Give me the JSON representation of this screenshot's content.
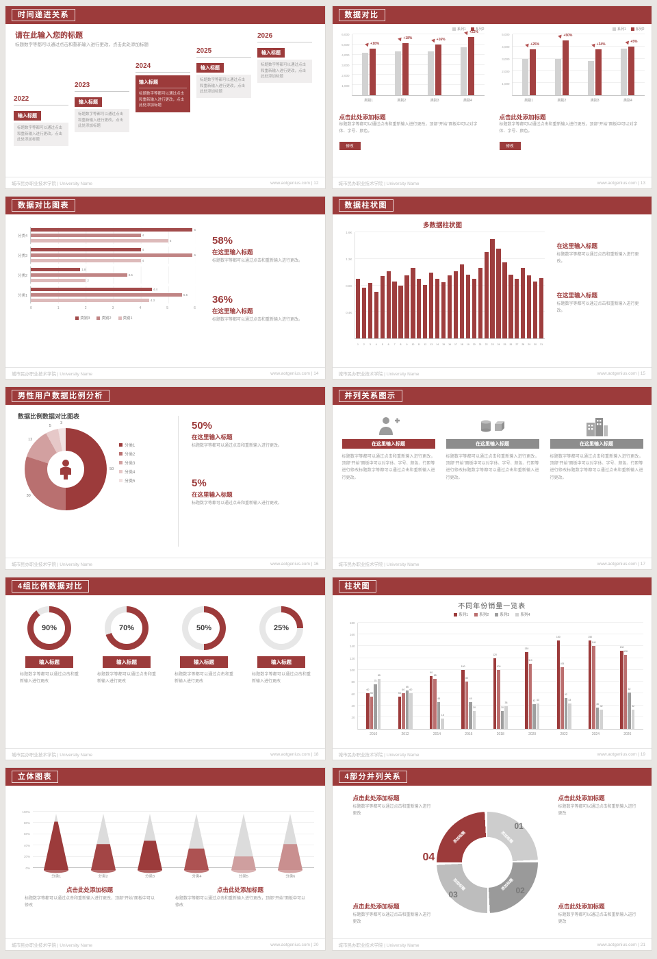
{
  "theme": {
    "accent_red": "#9c3b3b",
    "bar_gray": "#d2d2d2",
    "bar_red": "#a34141",
    "text_gray": "#9a9a9a",
    "background": "#e8e6e3"
  },
  "footer": {
    "org": "城市民办职业技术学院 | University Name",
    "url": "www.aotgenius.com"
  },
  "slides": {
    "s12": {
      "page": "12",
      "header": "时间递进关系",
      "title": "请在此输入您的标题",
      "subtitle": "标题数字等都可以通过点击和重新输入进行更改，点击此处添加标题",
      "item_label": "输入标题",
      "item_text": "标题数字等都可以通过点击和重新输入进行更改，点击此处添加标题",
      "years": [
        "2022",
        "2023",
        "2024",
        "2025",
        "2026"
      ]
    },
    "s13": {
      "page": "13",
      "header": "数据对比",
      "legend": [
        "系列1",
        "系列2"
      ],
      "block_title": "点击此处添加标题",
      "block_text": "标题数字等都可以通过点击和重新输入进行更改，顶部“开始”面板中可以对字体、字号、颜色。",
      "button": "修改",
      "charts": [
        {
          "ymax": 6000,
          "yticks": [
            "6,000",
            "5,000",
            "4,000",
            "3,000",
            "2,000",
            "1,000"
          ],
          "categories": [
            "类别1",
            "类别2",
            "类别3",
            "类别4"
          ],
          "series1": [
            4200,
            4300,
            4300,
            4700
          ],
          "series2": [
            4600,
            5100,
            5000,
            5700
          ],
          "deltas": [
            "+10%",
            "+18%",
            "+16%",
            "+22%"
          ]
        },
        {
          "ymax": 5000,
          "yticks": [
            "5,000",
            "4,000",
            "3,000",
            "2,000",
            "1,000"
          ],
          "categories": [
            "类别1",
            "类别2",
            "类别3",
            "类别4"
          ],
          "series1": [
            3000,
            3000,
            2800,
            3800
          ],
          "series2": [
            3750,
            4500,
            3750,
            4000
          ],
          "deltas": [
            "+25%",
            "+50%",
            "+34%",
            "+5%"
          ]
        }
      ]
    },
    "s14": {
      "page": "14",
      "header": "数据对比图表",
      "chart": {
        "categories": [
          "分类4",
          "分类3",
          "分类2",
          "分类1"
        ],
        "values": [
          [
            6,
            4,
            5
          ],
          [
            4,
            6,
            4
          ],
          [
            1.8,
            3.5,
            2
          ],
          [
            4.4,
            5.5,
            4.3
          ]
        ],
        "colors": [
          "#a24b4b",
          "#c08484",
          "#ddbaba"
        ],
        "legend": [
          "类别3",
          "类别2",
          "类别1"
        ],
        "xticks": [
          "0",
          "1",
          "2",
          "3",
          "4",
          "5",
          "6"
        ],
        "xmax": 6
      },
      "stats": [
        {
          "pct": "58%",
          "title": "在这里输入标题",
          "text": "标题数字等都可以通过点击和重新输入进行更改。"
        },
        {
          "pct": "36%",
          "title": "在这里输入标题",
          "text": "标题数字等都可以通过点击和重新输入进行更改。"
        }
      ]
    },
    "s15": {
      "page": "15",
      "header": "数据柱状图",
      "chart_title": "多数据柱状图",
      "ymax": 1600,
      "yticks": [
        "1.6K",
        "1.2K",
        "0.8K",
        "0.4K"
      ],
      "values": [
        900,
        760,
        840,
        700,
        940,
        1010,
        860,
        800,
        950,
        1060,
        900,
        810,
        990,
        900,
        850,
        950,
        1010,
        1110,
        960,
        900,
        1060,
        1300,
        1500,
        1350,
        1150,
        960,
        900,
        1060,
        950,
        860,
        910
      ],
      "blocks": [
        {
          "title": "在这里输入标题",
          "text": "标题数字等都可以通过点击和重新输入进行更改。"
        },
        {
          "title": "在这里输入标题",
          "text": "标题数字等都可以通过点击和重新输入进行更改。"
        }
      ]
    },
    "s16": {
      "page": "16",
      "header": "男性用户数据比例分析",
      "chart_title": "数据比例数据对比图表",
      "slices": [
        {
          "label": "分类1",
          "value": 50,
          "color": "#9c3b3b"
        },
        {
          "label": "分类2",
          "value": 30,
          "color": "#b97070"
        },
        {
          "label": "分类3",
          "value": 12,
          "color": "#d2a0a0"
        },
        {
          "label": "分类4",
          "value": 5,
          "color": "#e6c8c8"
        },
        {
          "label": "分类5",
          "value": 3,
          "color": "#f2e2e2"
        }
      ],
      "stats": [
        {
          "pct": "50%",
          "title": "在这里输入标题",
          "text": "标题数字等都可以通过点击和重新输入进行更改。"
        },
        {
          "pct": "5%",
          "title": "在这里输入标题",
          "text": "标题数字等都可以通过点击和重新输入进行更改。"
        }
      ]
    },
    "s17": {
      "page": "17",
      "header": "并列关系图示",
      "cols": [
        {
          "title": "在这里输入标题",
          "text": "标题数字等都可以通过点击和重新输入进行更改，顶部“开始”面板中可以对字体、字号、颜色、行距等进行修改标题数字等都可以通过点击和重新输入进行更改。"
        },
        {
          "title": "在这里输入标题",
          "text": "标题数字等都可以通过点击和重新输入进行更改，顶部“开始”面板中可以对字体、字号、颜色、行距等进行修改标题数字等都可以通过点击和重新输入进行更改。"
        },
        {
          "title": "在这里输入标题",
          "text": "标题数字等都可以通过点击和重新输入进行更改，顶部“开始”面板中可以对字体、字号、颜色、行距等进行修改标题数字等都可以通过点击和重新输入进行更改。"
        }
      ]
    },
    "s18": {
      "page": "18",
      "header": "4组比例数据对比",
      "button": "输入标题",
      "text": "标题数字等都可以通过点击和重新输入进行更改",
      "items": [
        {
          "pct": "90%"
        },
        {
          "pct": "70%"
        },
        {
          "pct": "50%"
        },
        {
          "pct": "25%"
        }
      ]
    },
    "s19": {
      "page": "19",
      "header": "柱状图",
      "chart_title": "不同年份销量一览表",
      "legend": [
        "系列1",
        "系列2",
        "系列3",
        "系列4"
      ],
      "colors": [
        "#9c3b3b",
        "#bb6f6f",
        "#9e9e9e",
        "#d2d2d2"
      ],
      "categories": [
        "2010",
        "2012",
        "2014",
        "2016",
        "2018",
        "2020",
        "2022",
        "2024",
        "2026"
      ],
      "series": [
        [
          60,
          55,
          90,
          100,
          120,
          130,
          150,
          150,
          132
        ],
        [
          55,
          60,
          85,
          80,
          100,
          110,
          105,
          140,
          126
        ],
        [
          75,
          65,
          45,
          45,
          30,
          42,
          52,
          36,
          62
        ],
        [
          85,
          60,
          18,
          30,
          38,
          43,
          43,
          32,
          32
        ]
      ],
      "ymax": 180,
      "yticks": [
        "180",
        "160",
        "140",
        "120",
        "100",
        "80",
        "60",
        "40",
        "20"
      ]
    },
    "s20": {
      "page": "20",
      "header": "立体图表",
      "categories": [
        "分类1",
        "分类2",
        "分类3",
        "分类4",
        "分类5",
        "分类6"
      ],
      "fills": [
        86,
        46,
        52,
        38,
        24,
        46
      ],
      "cone_colors": [
        "#9c3b3b",
        "#a34545",
        "#9c3b3b",
        "#ad5252",
        "#cf9f9f",
        "#c98f8f"
      ],
      "yticks": [
        "100%",
        "80%",
        "60%",
        "40%",
        "20%",
        "0%"
      ],
      "blocks": [
        {
          "title": "点击此处添加标题",
          "text": "标题数字等都可以通过点击和重新输入进行更改，顶部“开始”面板中可以修改"
        },
        {
          "title": "点击此处添加标题",
          "text": "标题数字等都可以通过点击和重新输入进行更改，顶部“开始”面板中可以修改"
        }
      ]
    },
    "s21": {
      "page": "21",
      "header": "4部分并列关系",
      "seg_label": "添加标题",
      "numbers": [
        "01",
        "02",
        "03",
        "04"
      ],
      "segments": [
        {
          "color": "#cdcdcd"
        },
        {
          "color": "#9a9a9a"
        },
        {
          "color": "#bdbdbd"
        },
        {
          "color": "#9c3b3b"
        }
      ],
      "blocks": [
        {
          "title": "点击此处添加标题",
          "text": "标题数字等都可以通过点击和重新输入进行更改"
        },
        {
          "title": "点击此处添加标题",
          "text": "标题数字等都可以通过点击和重新输入进行更改"
        },
        {
          "title": "点击此处添加标题",
          "text": "标题数字等都可以通过点击和重新输入进行更改"
        },
        {
          "title": "点击此处添加标题",
          "text": "标题数字等都可以通过点击和重新输入进行更改"
        }
      ]
    }
  }
}
